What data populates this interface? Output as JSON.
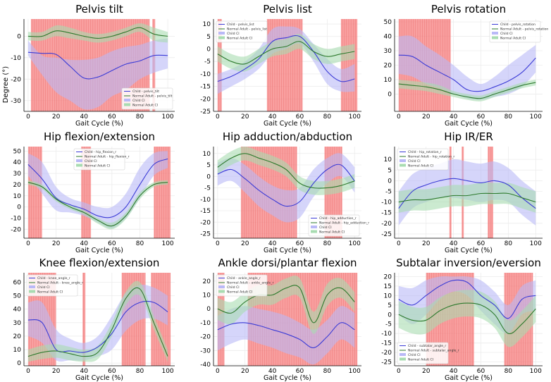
{
  "figure": {
    "ylabel": "Degree (°)",
    "colors": {
      "child_line": "#3b3bd6",
      "adult_line": "#2d7a2d",
      "child_band": "#b9b9f7",
      "adult_band": "#a8dcb1",
      "highlight": "#f77b7b",
      "grid": "#ececec"
    }
  },
  "chart_data": [
    {
      "type": "line",
      "title": "Pelvis  tilt",
      "xlabel": "Gait Cycle (%)",
      "ylabel": "Degree (°)",
      "xlim": [
        -3,
        105
      ],
      "ylim": [
        -35,
        8
      ],
      "xticks": [
        0,
        20,
        40,
        60,
        80,
        100
      ],
      "yticks": [
        0,
        -10,
        -20,
        -30
      ],
      "legend": [
        "Child - pelvis_tilt",
        "Normal Adult - pelvis_tilt",
        "Child CI",
        "Normal Adult CI"
      ],
      "legend_pos": "bottom-right",
      "x": [
        0,
        10,
        20,
        30,
        40,
        50,
        60,
        70,
        80,
        90,
        100
      ],
      "child": [
        -7.5,
        -8,
        -8.5,
        -14,
        -19.5,
        -19,
        -16,
        -13,
        -11.5,
        -9,
        -9
      ],
      "child_ci": [
        [
          -2,
          -9,
          -10,
          -11,
          -11,
          -10,
          -7,
          -5,
          -4,
          -2,
          -1
        ],
        [
          -9,
          -18,
          -26,
          -30,
          -34,
          -33,
          -28,
          -25,
          -20,
          -17,
          -15
        ]
      ],
      "adult": [
        0,
        0,
        2.5,
        1.5,
        0,
        -1,
        0,
        2,
        4,
        1,
        0
      ],
      "adult_ci": [
        [
          2,
          2,
          5,
          4,
          2,
          1,
          2,
          4,
          6,
          4,
          2
        ],
        [
          -2,
          -2,
          0,
          -1,
          -2,
          -3,
          -2,
          0,
          2,
          -2,
          -3
        ]
      ],
      "highlights": [
        [
          2,
          87
        ],
        [
          89,
          91
        ]
      ]
    },
    {
      "type": "line",
      "title": "Pelvis list",
      "xlabel": "Gait Cycle (%)",
      "ylabel": "",
      "xlim": [
        -3,
        105
      ],
      "ylim": [
        -25,
        12
      ],
      "xticks": [
        0,
        20,
        40,
        60,
        80,
        100
      ],
      "yticks": [
        10,
        5,
        0,
        -5,
        -10,
        -15,
        -20,
        -25
      ],
      "legend": [
        "Child - pelvis_list",
        "Normal Adult - pelvis_list",
        "Child CI",
        "Normal Adult CI"
      ],
      "legend_pos": "top-left",
      "x": [
        0,
        10,
        20,
        30,
        40,
        50,
        60,
        70,
        80,
        90,
        100
      ],
      "child": [
        -13,
        -11,
        -8,
        -4,
        3,
        4.5,
        5,
        -1,
        -9,
        -13,
        -12
      ],
      "child_ci": [
        [
          -10,
          -8,
          -5,
          0,
          8,
          9,
          8,
          2,
          -4,
          -8,
          -6
        ],
        [
          -18,
          -15,
          -12,
          -8,
          -2,
          0,
          2,
          -5,
          -14,
          -17,
          -17
        ]
      ],
      "adult": [
        -2,
        -5,
        -6,
        -3,
        0,
        1,
        3,
        -1,
        -3,
        -2,
        -1
      ],
      "adult_ci": [
        [
          1,
          -2,
          -3,
          0,
          3,
          4,
          6,
          2,
          0,
          1,
          2
        ],
        [
          -5,
          -8,
          -9,
          -6,
          -3,
          -2,
          0,
          -4,
          -6,
          -5,
          -4
        ]
      ],
      "highlights": [
        [
          0,
          3
        ],
        [
          36,
          62
        ],
        [
          90,
          102
        ]
      ]
    },
    {
      "type": "line",
      "title": "Pelvis rotation",
      "xlabel": "Gait Cycle (%)",
      "ylabel": "",
      "xlim": [
        -3,
        105
      ],
      "ylim": [
        -12,
        52
      ],
      "xticks": [
        0,
        20,
        40,
        60,
        80,
        100
      ],
      "yticks": [
        50,
        40,
        30,
        20,
        10,
        0
      ],
      "legend": [
        "Child - pelvis_rotation",
        "Normal Adult - pelvis_rotation",
        "Child CI",
        "Normal Adult CI"
      ],
      "legend_pos": "top-right",
      "x": [
        0,
        10,
        20,
        30,
        40,
        50,
        60,
        70,
        80,
        90,
        100
      ],
      "child": [
        27,
        26,
        20,
        15,
        10,
        3,
        2,
        5,
        9,
        15,
        25
      ],
      "child_ci": [
        [
          40,
          40,
          33,
          27,
          20,
          12,
          7,
          12,
          20,
          27,
          34
        ],
        [
          14,
          12,
          7,
          4,
          0,
          -3,
          -4,
          -2,
          0,
          5,
          15
        ]
      ],
      "adult": [
        7,
        6,
        5,
        3,
        0,
        -2,
        -3,
        0,
        3,
        6,
        8
      ],
      "adult_ci": [
        [
          10,
          9,
          8,
          6,
          2,
          0,
          -1,
          2,
          5,
          8,
          10
        ],
        [
          4,
          3,
          2,
          0,
          -2,
          -4,
          -5,
          -2,
          1,
          4,
          6
        ]
      ],
      "highlights": [
        [
          0,
          38
        ]
      ]
    },
    {
      "type": "line",
      "title": "Hip flexion/extension",
      "xlabel": "Gait Cycle (%)",
      "ylabel": "",
      "xlim": [
        -3,
        105
      ],
      "ylim": [
        -28,
        54
      ],
      "xticks": [
        0,
        20,
        40,
        60,
        80,
        100
      ],
      "yticks": [
        50,
        40,
        30,
        20,
        10,
        0,
        -10,
        -20
      ],
      "legend": [
        "Child - hip_flexion_r",
        "Normal Adult - hip_flexion_r",
        "Child CI",
        "Normal Adult CI"
      ],
      "legend_pos": "top-center",
      "x": [
        0,
        10,
        20,
        30,
        40,
        50,
        60,
        70,
        80,
        90,
        100
      ],
      "child": [
        38,
        25,
        8,
        2,
        -2,
        -8,
        -9,
        0,
        20,
        38,
        43
      ],
      "child_ci": [
        [
          48,
          40,
          18,
          8,
          4,
          0,
          0,
          12,
          35,
          48,
          50
        ],
        [
          28,
          12,
          -3,
          -5,
          -8,
          -14,
          -19,
          -10,
          8,
          28,
          35
        ]
      ],
      "adult": [
        22,
        18,
        7,
        0,
        -5,
        -12,
        -17,
        -8,
        10,
        20,
        22
      ],
      "adult_ci": [
        [
          24,
          20,
          9,
          2,
          -3,
          -10,
          -14,
          -5,
          13,
          22,
          24
        ],
        [
          20,
          16,
          5,
          -2,
          -7,
          -15,
          -20,
          -11,
          7,
          18,
          20
        ]
      ],
      "highlights": [
        [
          0,
          10
        ],
        [
          38,
          45
        ],
        [
          90,
          102
        ]
      ]
    },
    {
      "type": "line",
      "title": "Hip adduction/abduction",
      "xlabel": "Gait Cycle (%)",
      "ylabel": "",
      "xlim": [
        -3,
        105
      ],
      "ylim": [
        -27,
        13
      ],
      "xticks": [
        0,
        20,
        40,
        60,
        80,
        100
      ],
      "yticks": [
        10,
        5,
        0,
        -5,
        -10,
        -15,
        -20,
        -25
      ],
      "legend": [
        "Child - hip_adduction_r",
        "Normal Adult - hip_adduction_r",
        "Child CI",
        "Normal Adult CI"
      ],
      "legend_pos": "bottom-right",
      "x": [
        0,
        10,
        20,
        30,
        40,
        50,
        60,
        70,
        80,
        90,
        100
      ],
      "child": [
        1,
        3,
        -1,
        -6,
        -10,
        -13,
        -11,
        -3,
        3,
        5,
        -2
      ],
      "child_ci": [
        [
          6,
          8,
          5,
          0,
          -4,
          -6,
          -5,
          3,
          8,
          10,
          4
        ],
        [
          -4,
          -2,
          -7,
          -13,
          -17,
          -20,
          -18,
          -9,
          -3,
          0,
          -7
        ]
      ],
      "adult": [
        4,
        8,
        10,
        8,
        6,
        3,
        -3,
        -5,
        -5,
        -4,
        -2
      ],
      "adult_ci": [
        [
          7,
          11,
          13,
          11,
          9,
          6,
          0,
          -2,
          -2,
          -1,
          1
        ],
        [
          1,
          5,
          7,
          5,
          3,
          0,
          -6,
          -8,
          -8,
          -7,
          -5
        ]
      ],
      "highlights": [
        [
          17,
          58
        ],
        [
          78,
          91
        ]
      ]
    },
    {
      "type": "line",
      "title": "Hip IR/ER",
      "xlabel": "Gait Cycle (%)",
      "ylabel": "",
      "xlim": [
        -3,
        105
      ],
      "ylim": [
        -27,
        16
      ],
      "xticks": [
        0,
        20,
        40,
        60,
        80,
        100
      ],
      "yticks": [
        10,
        5,
        0,
        -5,
        -10,
        -15,
        -20,
        -25
      ],
      "legend": [
        "Child - hip_rotation_r",
        "Normal Adult - hip_rotation_r",
        "Child CI",
        "Normal Adult CI"
      ],
      "legend_pos": "top-left",
      "x": [
        0,
        10,
        20,
        30,
        40,
        50,
        60,
        70,
        80,
        90,
        100
      ],
      "child": [
        -13,
        -5,
        -2,
        0,
        1,
        0,
        -1,
        0,
        -2,
        -8,
        -13
      ],
      "child_ci": [
        [
          -5,
          3,
          6,
          8,
          10,
          9,
          8,
          9,
          6,
          0,
          -5
        ],
        [
          -21,
          -13,
          -10,
          -8,
          -8,
          -9,
          -10,
          -9,
          -10,
          -16,
          -21
        ]
      ],
      "adult": [
        -10,
        -9,
        -9,
        -8,
        -7,
        -7,
        -6,
        -6,
        -6,
        -8,
        -10
      ],
      "adult_ci": [
        [
          -5,
          -4,
          -4,
          -3,
          -2,
          -2,
          -1,
          -1,
          -1,
          -3,
          -5
        ],
        [
          -15,
          -14,
          -14,
          -13,
          -12,
          -12,
          -11,
          -11,
          -11,
          -13,
          -15
        ]
      ],
      "highlights": [
        [
          37,
          38.5
        ],
        [
          46,
          47.5
        ],
        [
          65,
          69
        ]
      ]
    },
    {
      "type": "line",
      "title": "Knee flexion/extension",
      "xlabel": "Gait Cycle (%)",
      "ylabel": "",
      "xlim": [
        -3,
        105
      ],
      "ylim": [
        -2,
        67
      ],
      "xticks": [
        0,
        20,
        40,
        60,
        80,
        100
      ],
      "yticks": [
        60,
        50,
        40,
        30,
        20,
        10,
        0
      ],
      "legend": [
        "Child - knee_angle_r",
        "Normal Adult - knee_angle_r",
        "Child CI",
        "Normal Adult CI"
      ],
      "legend_pos": "top-left",
      "x": [
        0,
        10,
        20,
        30,
        40,
        50,
        60,
        70,
        80,
        90,
        100
      ],
      "child": [
        32,
        30,
        10,
        9,
        8,
        12,
        22,
        38,
        45,
        45,
        38
      ],
      "child_ci": [
        [
          45,
          45,
          25,
          18,
          15,
          20,
          35,
          52,
          58,
          56,
          50
        ],
        [
          20,
          15,
          2,
          2,
          2,
          5,
          10,
          24,
          32,
          33,
          28
        ]
      ],
      "adult": [
        5,
        8,
        9,
        7,
        5,
        8,
        25,
        48,
        55,
        30,
        5
      ],
      "adult_ci": [
        [
          10,
          13,
          14,
          12,
          10,
          13,
          30,
          53,
          60,
          35,
          10
        ],
        [
          1,
          3,
          4,
          2,
          1,
          3,
          20,
          43,
          50,
          25,
          1
        ]
      ],
      "highlights": [
        [
          0,
          20
        ],
        [
          39,
          41
        ],
        [
          67,
          84
        ],
        [
          88,
          102
        ]
      ]
    },
    {
      "type": "line",
      "title": "Ankle dorsi/plantar flexion",
      "xlabel": "Gait Cycle (%)",
      "ylabel": "",
      "xlim": [
        -3,
        105
      ],
      "ylim": [
        -41,
        26
      ],
      "xticks": [
        0,
        20,
        40,
        60,
        80,
        100
      ],
      "yticks": [
        20,
        10,
        0,
        -10,
        -20,
        -30,
        -40
      ],
      "legend": [
        "Child - ankle_angle_r",
        "Normal Adult - ankle_angle_r",
        "Child CI",
        "Normal Adult CI"
      ],
      "legend_pos": "top-left",
      "x": [
        0,
        10,
        20,
        30,
        40,
        50,
        60,
        70,
        80,
        90,
        100
      ],
      "child": [
        -15,
        -11,
        -10,
        -12,
        -15,
        -18,
        -22,
        -28,
        -20,
        -10,
        -15
      ],
      "child_ci": [
        [
          -5,
          0,
          2,
          0,
          -2,
          -5,
          -10,
          -15,
          -8,
          2,
          -3
        ],
        [
          -30,
          -25,
          -22,
          -25,
          -28,
          -32,
          -35,
          -40,
          -32,
          -22,
          -28
        ]
      ],
      "adult": [
        0,
        -3,
        5,
        10,
        10,
        15,
        15,
        -10,
        10,
        15,
        5
      ],
      "adult_ci": [
        [
          8,
          5,
          12,
          17,
          17,
          22,
          22,
          -2,
          18,
          22,
          12
        ],
        [
          -8,
          -11,
          -2,
          3,
          3,
          8,
          8,
          -18,
          2,
          8,
          -2
        ]
      ],
      "highlights": [
        [
          0,
          5
        ],
        [
          22,
          102
        ]
      ]
    },
    {
      "type": "line",
      "title": "Subtalar inversion/eversion",
      "xlabel": "Gait Cycle (%)",
      "ylabel": "",
      "xlim": [
        -3,
        105
      ],
      "ylim": [
        -27,
        22
      ],
      "xticks": [
        0,
        20,
        40,
        60,
        80,
        100
      ],
      "yticks": [
        20,
        15,
        10,
        5,
        0,
        -5,
        -10,
        -15,
        -20,
        -25
      ],
      "legend": [
        "Child - subtalar_angle_r",
        "Normal Adult - subtalar_angle_r",
        "Child CI",
        "Normal Adult CI"
      ],
      "legend_pos": "bottom-left",
      "x": [
        0,
        10,
        20,
        30,
        40,
        50,
        60,
        70,
        80,
        90,
        100
      ],
      "child": [
        8,
        5,
        10,
        15,
        18,
        17,
        10,
        5,
        -2,
        8,
        10
      ],
      "child_ci": [
        [
          15,
          14,
          18,
          20,
          20,
          20,
          18,
          12,
          5,
          15,
          18
        ],
        [
          0,
          -5,
          0,
          8,
          12,
          10,
          2,
          -5,
          -10,
          0,
          2
        ]
      ],
      "adult": [
        0,
        -3,
        -3,
        2,
        5,
        6,
        5,
        0,
        -10,
        -5,
        3
      ],
      "adult_ci": [
        [
          7,
          4,
          4,
          9,
          12,
          13,
          12,
          7,
          -3,
          2,
          10
        ],
        [
          -7,
          -10,
          -10,
          -5,
          -2,
          -1,
          -2,
          -7,
          -17,
          -12,
          -4
        ]
      ],
      "highlights": [
        [
          20,
          55
        ],
        [
          77,
          98
        ]
      ]
    }
  ]
}
